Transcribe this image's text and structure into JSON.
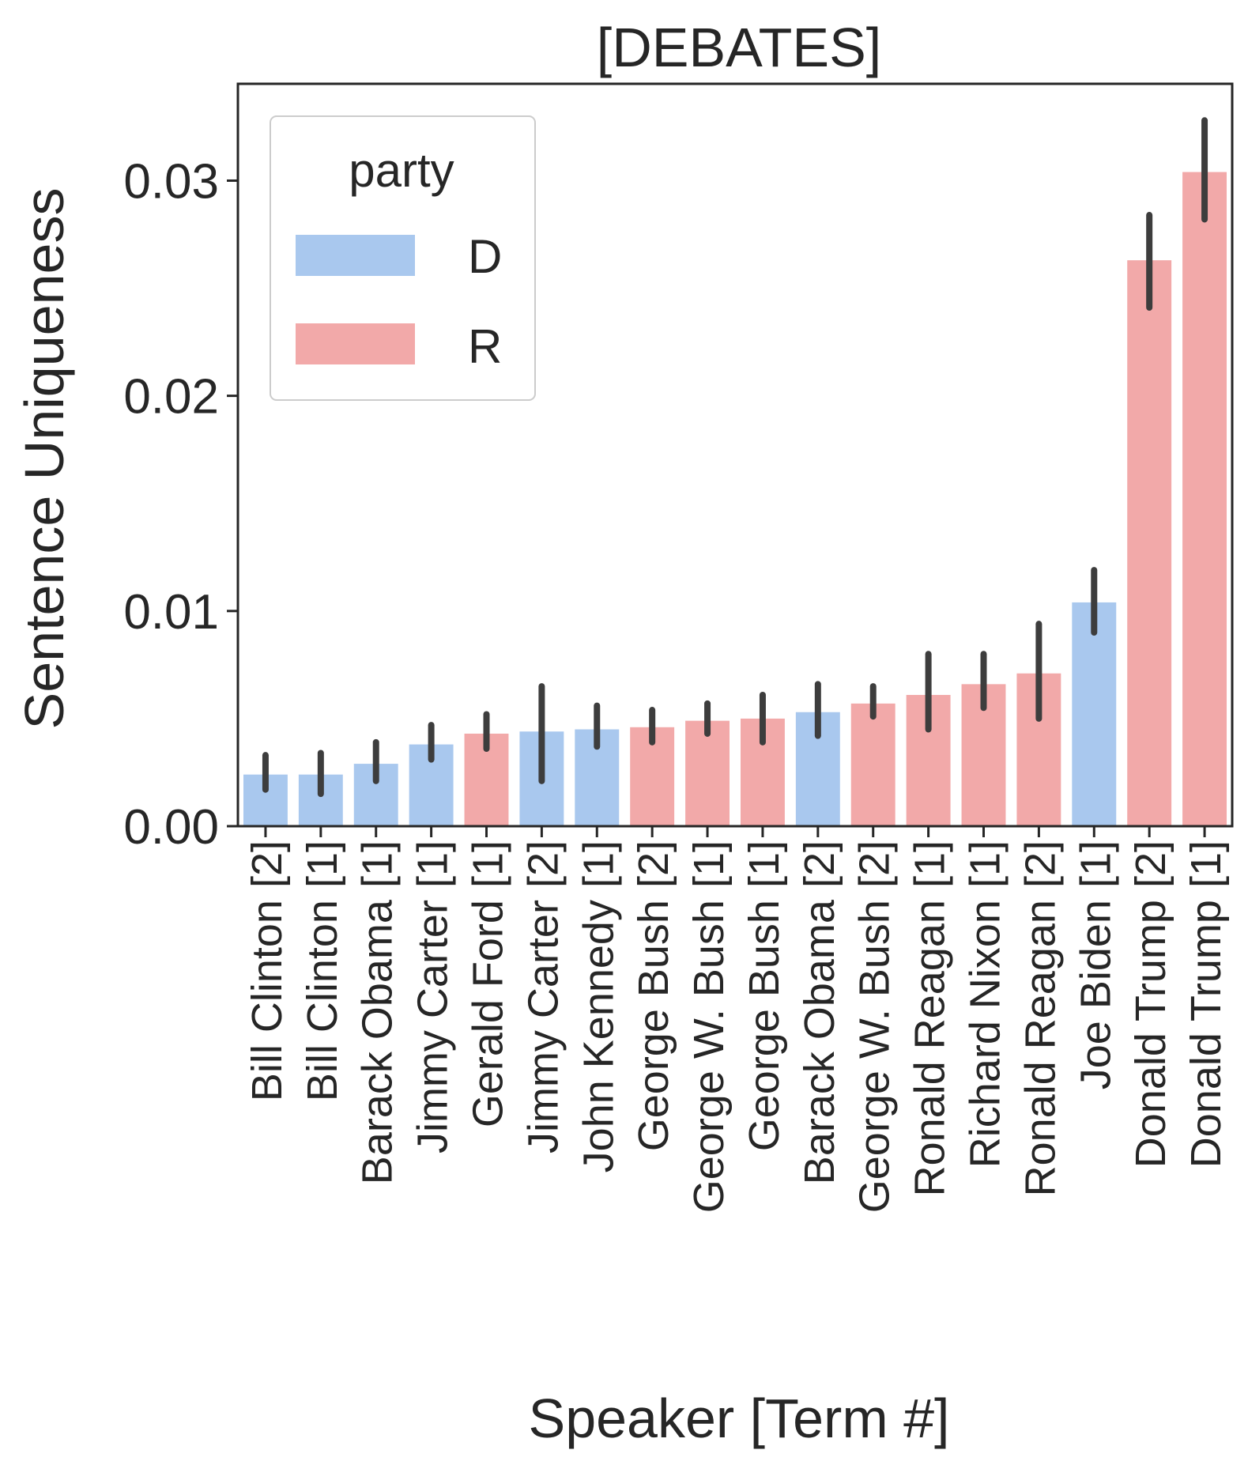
{
  "chart_data": {
    "type": "bar",
    "title": "[DEBATES]",
    "xlabel": "Speaker [Term #]",
    "ylabel": "Sentence Uniqueness",
    "ylim": [
      0,
      0.0345
    ],
    "yticks": [
      0.0,
      0.01,
      0.02,
      0.03
    ],
    "ytick_labels": [
      "0.00",
      "0.01",
      "0.02",
      "0.03"
    ],
    "grid": false,
    "legend": {
      "title": "party",
      "position": "top-left",
      "entries": [
        {
          "label": "D",
          "color": "#a9c8ee"
        },
        {
          "label": "R",
          "color": "#f2a9a9"
        }
      ]
    },
    "colors": {
      "D": "#a9c8ee",
      "R": "#f2a9a9",
      "errorbar": "#3d3d3d",
      "axis": "#262626"
    },
    "bars": [
      {
        "name": "Bill Clinton",
        "term": "2",
        "party": "D",
        "value": 0.0024,
        "err_low": 0.0017,
        "err_high": 0.0033
      },
      {
        "name": "Bill Clinton",
        "term": "1",
        "party": "D",
        "value": 0.0024,
        "err_low": 0.0015,
        "err_high": 0.0034
      },
      {
        "name": "Barack Obama",
        "term": "1",
        "party": "D",
        "value": 0.0029,
        "err_low": 0.0021,
        "err_high": 0.0039
      },
      {
        "name": "Jimmy Carter",
        "term": "1",
        "party": "D",
        "value": 0.0038,
        "err_low": 0.0031,
        "err_high": 0.0047
      },
      {
        "name": "Gerald Ford",
        "term": "1",
        "party": "R",
        "value": 0.0043,
        "err_low": 0.0036,
        "err_high": 0.0052
      },
      {
        "name": "Jimmy Carter",
        "term": "2",
        "party": "D",
        "value": 0.0044,
        "err_low": 0.0021,
        "err_high": 0.0065
      },
      {
        "name": "John Kennedy",
        "term": "1",
        "party": "D",
        "value": 0.0045,
        "err_low": 0.0037,
        "err_high": 0.0056
      },
      {
        "name": "George Bush",
        "term": "2",
        "party": "R",
        "value": 0.0046,
        "err_low": 0.0039,
        "err_high": 0.0054
      },
      {
        "name": "George W. Bush",
        "term": "1",
        "party": "R",
        "value": 0.0049,
        "err_low": 0.0043,
        "err_high": 0.0057
      },
      {
        "name": "George Bush",
        "term": "1",
        "party": "R",
        "value": 0.005,
        "err_low": 0.0039,
        "err_high": 0.0061
      },
      {
        "name": "Barack Obama",
        "term": "2",
        "party": "D",
        "value": 0.0053,
        "err_low": 0.0042,
        "err_high": 0.0066
      },
      {
        "name": "George W. Bush",
        "term": "2",
        "party": "R",
        "value": 0.0057,
        "err_low": 0.0051,
        "err_high": 0.0065
      },
      {
        "name": "Ronald Reagan",
        "term": "1",
        "party": "R",
        "value": 0.0061,
        "err_low": 0.0045,
        "err_high": 0.008
      },
      {
        "name": "Richard Nixon",
        "term": "1",
        "party": "R",
        "value": 0.0066,
        "err_low": 0.0055,
        "err_high": 0.008
      },
      {
        "name": "Ronald Reagan",
        "term": "2",
        "party": "R",
        "value": 0.0071,
        "err_low": 0.005,
        "err_high": 0.0094
      },
      {
        "name": "Joe Biden",
        "term": "1",
        "party": "D",
        "value": 0.0104,
        "err_low": 0.009,
        "err_high": 0.0119
      },
      {
        "name": "Donald Trump",
        "term": "2",
        "party": "R",
        "value": 0.0263,
        "err_low": 0.0241,
        "err_high": 0.0284
      },
      {
        "name": "Donald Trump",
        "term": "1",
        "party": "R",
        "value": 0.0304,
        "err_low": 0.0282,
        "err_high": 0.0328
      }
    ]
  }
}
